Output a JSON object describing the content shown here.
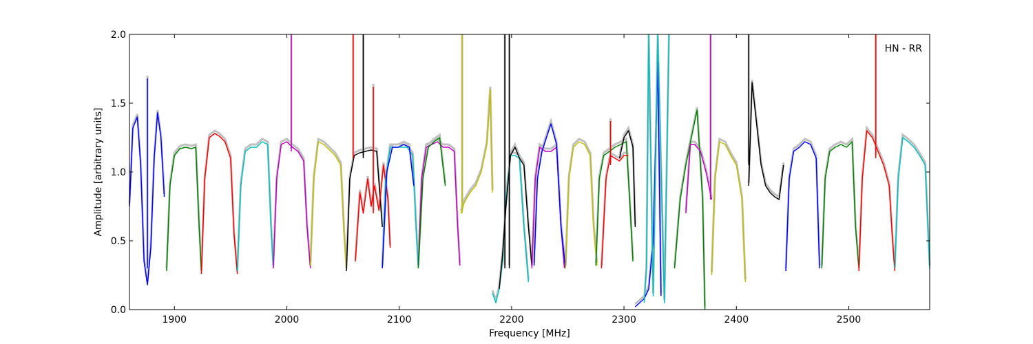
{
  "chart_data": {
    "type": "line",
    "title": "",
    "annotation": "HN - RR",
    "xlabel": "Frequency [MHz]",
    "ylabel": "Amplitude [arbitrary units]",
    "xlim": [
      1860,
      2572
    ],
    "ylim": [
      0.0,
      2.0
    ],
    "x_ticks": [
      1900,
      2000,
      2100,
      2200,
      2300,
      2400,
      2500
    ],
    "x_tick_labels": [
      "1900",
      "2000",
      "2100",
      "2200",
      "2300",
      "2400",
      "2500"
    ],
    "y_ticks": [
      0.0,
      0.5,
      1.0,
      1.5,
      2.0
    ],
    "y_tick_labels": [
      "0.0",
      "0.5",
      "1.0",
      "1.5",
      "2.0"
    ],
    "grid": false,
    "legend": "none",
    "background_color": "#c0c0c0",
    "series": [
      {
        "color": "#0000ff",
        "x": [
          1860,
          1863,
          1867,
          1870,
          1873,
          1876,
          1879,
          1882,
          1885,
          1888,
          1891
        ],
        "y": [
          0.75,
          1.32,
          1.4,
          1.05,
          0.35,
          0.18,
          0.45,
          1.1,
          1.43,
          1.25,
          0.82
        ]
      },
      {
        "color": "#008000",
        "x": [
          1893,
          1896,
          1900,
          1905,
          1910,
          1915,
          1919,
          1922,
          1924
        ],
        "y": [
          0.28,
          0.9,
          1.12,
          1.17,
          1.18,
          1.17,
          1.18,
          0.6,
          0.28
        ]
      },
      {
        "color": "#ff0000",
        "x": [
          1924,
          1927,
          1931,
          1936,
          1940,
          1945,
          1950,
          1953,
          1956
        ],
        "y": [
          0.26,
          0.95,
          1.25,
          1.28,
          1.26,
          1.22,
          1.1,
          0.55,
          0.26
        ]
      },
      {
        "color": "#00bfbf",
        "x": [
          1956,
          1959,
          1963,
          1968,
          1973,
          1978,
          1983,
          1986,
          1988
        ],
        "y": [
          0.28,
          0.9,
          1.15,
          1.18,
          1.18,
          1.22,
          1.2,
          0.6,
          0.3
        ]
      },
      {
        "color": "#bf00bf",
        "x": [
          1988,
          1991,
          1995,
          2000,
          2005,
          2010,
          2015,
          2018,
          2021
        ],
        "y": [
          0.3,
          0.95,
          1.2,
          1.22,
          1.18,
          1.15,
          1.08,
          0.6,
          0.3
        ]
      },
      {
        "color": "#bfbf00",
        "x": [
          2021,
          2024,
          2028,
          2033,
          2038,
          2043,
          2048,
          2051,
          2053
        ],
        "y": [
          0.32,
          0.95,
          1.22,
          1.2,
          1.16,
          1.12,
          1.05,
          0.55,
          0.3
        ]
      },
      {
        "color": "#000000",
        "x": [
          2053,
          2056,
          2060,
          2065,
          2070,
          2075,
          2080,
          2085
        ],
        "y": [
          0.28,
          0.95,
          1.12,
          1.14,
          1.15,
          1.16,
          1.15,
          0.6
        ]
      },
      {
        "color": "#ff0000",
        "x": [
          2061,
          2065,
          2068,
          2072,
          2075,
          2078,
          2082,
          2086,
          2090,
          2092
        ],
        "y": [
          0.35,
          0.85,
          0.7,
          0.95,
          0.75,
          0.9,
          0.72,
          1.05,
          0.8,
          0.45
        ]
      },
      {
        "color": "#00bfbf",
        "x": [
          2085,
          2088,
          2092,
          2097,
          2102,
          2107,
          2112,
          2115,
          2117
        ],
        "y": [
          0.3,
          0.95,
          1.18,
          1.18,
          1.18,
          1.18,
          1.12,
          0.6,
          0.3
        ]
      },
      {
        "color": "#0000ff",
        "x": [
          2085,
          2089,
          2094,
          2099,
          2104,
          2109,
          2113
        ],
        "y": [
          0.3,
          1.0,
          1.18,
          1.18,
          1.2,
          1.18,
          0.9
        ]
      },
      {
        "color": "#bf00bf",
        "x": [
          2117,
          2120,
          2124,
          2129,
          2134,
          2139,
          2144,
          2149,
          2152,
          2154
        ],
        "y": [
          0.32,
          0.95,
          1.18,
          1.2,
          1.22,
          1.18,
          1.18,
          1.15,
          0.6,
          0.32
        ]
      },
      {
        "color": "#008000",
        "x": [
          2117,
          2121,
          2126,
          2131,
          2136,
          2141
        ],
        "y": [
          0.3,
          0.95,
          1.18,
          1.22,
          1.25,
          0.9
        ]
      },
      {
        "color": "#bfbf00",
        "x": [
          2155,
          2158,
          2163,
          2168,
          2173,
          2178,
          2181,
          2183
        ],
        "y": [
          0.7,
          0.78,
          0.85,
          0.9,
          1.0,
          1.2,
          1.6,
          0.85
        ]
      },
      {
        "color": "#00bfbf",
        "x": [
          2183,
          2186,
          2189,
          2192,
          2195,
          2199,
          2203,
          2207,
          2211,
          2215
        ],
        "y": [
          0.12,
          0.05,
          0.15,
          0.35,
          0.8,
          1.12,
          1.12,
          1.1,
          0.6,
          0.2
        ]
      },
      {
        "color": "#000000",
        "x": [
          2189,
          2192,
          2195,
          2199,
          2203,
          2207,
          2211,
          2215,
          2218
        ],
        "y": [
          0.15,
          0.4,
          0.75,
          1.12,
          1.18,
          1.1,
          1.05,
          0.6,
          0.32
        ]
      },
      {
        "color": "#bf00bf",
        "x": [
          2218,
          2221,
          2225,
          2230,
          2235,
          2240,
          2244,
          2247
        ],
        "y": [
          0.3,
          0.95,
          1.18,
          1.15,
          1.15,
          1.18,
          0.6,
          0.3
        ]
      },
      {
        "color": "#0000ff",
        "x": [
          2220,
          2223,
          2227,
          2231,
          2235,
          2240,
          2244,
          2248
        ],
        "y": [
          0.32,
          0.95,
          1.15,
          1.25,
          1.35,
          1.2,
          0.6,
          0.3
        ]
      },
      {
        "color": "#bfbf00",
        "x": [
          2248,
          2251,
          2255,
          2260,
          2265,
          2270,
          2273,
          2276
        ],
        "y": [
          0.3,
          0.95,
          1.18,
          1.22,
          1.2,
          1.12,
          0.6,
          0.32
        ]
      },
      {
        "color": "#008000",
        "x": [
          2275,
          2278,
          2282,
          2287,
          2292,
          2297,
          2302,
          2305,
          2308
        ],
        "y": [
          0.32,
          0.95,
          1.12,
          1.15,
          1.18,
          1.2,
          1.22,
          0.8,
          0.35
        ]
      },
      {
        "color": "#ff0000",
        "x": [
          2280,
          2284,
          2288,
          2292,
          2296,
          2300,
          2304
        ],
        "y": [
          0.3,
          0.95,
          1.12,
          1.1,
          1.08,
          1.12,
          1.12
        ]
      },
      {
        "color": "#000000",
        "x": [
          2296,
          2300,
          2304,
          2308,
          2310
        ],
        "y": [
          1.1,
          1.25,
          1.3,
          1.18,
          0.6
        ]
      },
      {
        "color": "#0000ff",
        "x": [
          2310,
          2314,
          2318,
          2322,
          2326,
          2330,
          2333
        ],
        "y": [
          0.02,
          0.05,
          0.08,
          0.15,
          0.5,
          1.8,
          0.1
        ]
      },
      {
        "color": "#00bfbf",
        "x": [
          2318,
          2320,
          2322,
          2326,
          2330,
          2336,
          2340
        ],
        "y": [
          0.05,
          0.3,
          2.0,
          0.1,
          2.0,
          0.05,
          2.0
        ]
      },
      {
        "color": "#008000",
        "x": [
          2345,
          2350,
          2355,
          2360,
          2365,
          2370,
          2372
        ],
        "y": [
          0.3,
          0.8,
          1.05,
          1.25,
          1.45,
          0.8,
          0.0
        ]
      },
      {
        "color": "#bf00bf",
        "x": [
          2355,
          2359,
          2363,
          2368,
          2373,
          2378
        ],
        "y": [
          0.7,
          1.2,
          1.2,
          1.15,
          1.0,
          0.8
        ]
      },
      {
        "color": "#bfbf00",
        "x": [
          2378,
          2381,
          2385,
          2390,
          2395,
          2400,
          2405,
          2408
        ],
        "y": [
          0.25,
          0.95,
          1.22,
          1.2,
          1.12,
          1.05,
          0.8,
          0.2
        ]
      },
      {
        "color": "#000000",
        "x": [
          2411,
          2414,
          2418,
          2422,
          2426,
          2430,
          2434,
          2438,
          2442
        ],
        "y": [
          0.9,
          1.65,
          1.35,
          1.05,
          0.9,
          0.85,
          0.82,
          0.8,
          1.05
        ]
      },
      {
        "color": "#0000ff",
        "x": [
          2444,
          2447,
          2451,
          2456,
          2461,
          2466,
          2471,
          2474
        ],
        "y": [
          0.28,
          0.95,
          1.15,
          1.18,
          1.22,
          1.2,
          1.1,
          0.3
        ]
      },
      {
        "color": "#008000",
        "x": [
          2476,
          2479,
          2483,
          2488,
          2493,
          2498,
          2503,
          2506,
          2509
        ],
        "y": [
          0.3,
          0.95,
          1.15,
          1.18,
          1.2,
          1.18,
          1.22,
          0.6,
          0.3
        ]
      },
      {
        "color": "#ff0000",
        "x": [
          2509,
          2512,
          2516,
          2521,
          2526,
          2531,
          2536,
          2539,
          2541
        ],
        "y": [
          0.28,
          0.95,
          1.3,
          1.25,
          1.15,
          1.05,
          0.9,
          0.5,
          0.28
        ]
      },
      {
        "color": "#00bfbf",
        "x": [
          2541,
          2544,
          2548,
          2553,
          2558,
          2563,
          2568,
          2572
        ],
        "y": [
          0.3,
          0.95,
          1.25,
          1.22,
          1.18,
          1.12,
          1.05,
          0.3
        ]
      },
      {
        "color": "#0000ff",
        "x": [
          1876,
          1876
        ],
        "y": [
          0.3,
          1.68
        ]
      },
      {
        "color": "#bf00bf",
        "x": [
          2004,
          2004
        ],
        "y": [
          1.15,
          2.0
        ]
      },
      {
        "color": "#ff0000",
        "x": [
          2059,
          2059
        ],
        "y": [
          1.1,
          2.0
        ]
      },
      {
        "color": "#000000",
        "x": [
          2068,
          2068
        ],
        "y": [
          1.1,
          2.0
        ]
      },
      {
        "color": "#ff0000",
        "x": [
          2077,
          2077
        ],
        "y": [
          0.7,
          1.62
        ]
      },
      {
        "color": "#bfbf00",
        "x": [
          2156,
          2156
        ],
        "y": [
          0.7,
          2.0
        ]
      },
      {
        "color": "#000000",
        "x": [
          2194,
          2194
        ],
        "y": [
          0.3,
          2.0
        ]
      },
      {
        "color": "#000000",
        "x": [
          2198,
          2198
        ],
        "y": [
          0.3,
          2.0
        ]
      },
      {
        "color": "#ff0000",
        "x": [
          2288,
          2288
        ],
        "y": [
          1.05,
          1.37
        ]
      },
      {
        "color": "#bf00bf",
        "x": [
          2377,
          2377
        ],
        "y": [
          0.8,
          2.0
        ]
      },
      {
        "color": "#000000",
        "x": [
          2411,
          2411
        ],
        "y": [
          1.05,
          2.0
        ]
      },
      {
        "color": "#ff0000",
        "x": [
          2524,
          2524
        ],
        "y": [
          1.1,
          2.0
        ]
      }
    ]
  }
}
